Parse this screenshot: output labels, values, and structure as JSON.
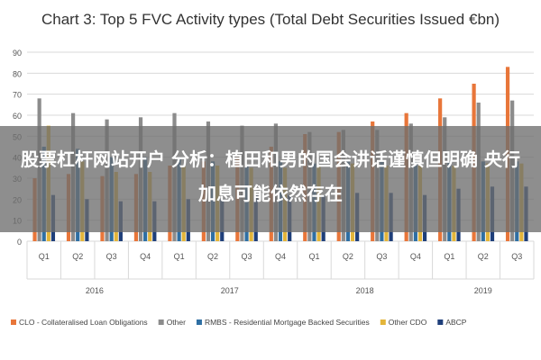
{
  "overlay": {
    "headline": "股票杠杆网站开户 分析：植田和男的国会讲话谨慎但明确 央行加息可能依然存在"
  },
  "colors": {
    "CLO": "#e8763a",
    "Other": "#8c8c8c",
    "RMBS": "#2f6fa3",
    "OtherCDO": "#e3b53a",
    "ABCP": "#1f3f7a",
    "grid": "#d9d9d9",
    "axis_text": "#555555"
  },
  "chart_data": {
    "type": "bar",
    "title": "Chart 3: Top 5 FVC Activity types (Total Debt Securities Issued €bn)",
    "xlabel": "",
    "ylabel": "",
    "ylim": [
      0,
      90
    ],
    "yticks": [
      0,
      10,
      20,
      30,
      40,
      50,
      60,
      70,
      80,
      90
    ],
    "grid": true,
    "legend_position": "bottom",
    "categories": [
      "Q1",
      "Q2",
      "Q3",
      "Q4",
      "Q1",
      "Q2",
      "Q3",
      "Q4",
      "Q1",
      "Q2",
      "Q3",
      "Q4",
      "Q1",
      "Q2",
      "Q3"
    ],
    "groups": [
      {
        "label": "2016",
        "count": 4
      },
      {
        "label": "2017",
        "count": 4
      },
      {
        "label": "2018",
        "count": 4
      },
      {
        "label": "2019",
        "count": 3
      }
    ],
    "series": [
      {
        "name": "CLO - Collateralised Loan Obligations",
        "color_key": "CLO",
        "values": [
          30,
          32,
          31,
          32,
          36,
          38,
          40,
          45,
          51,
          52,
          57,
          61,
          68,
          75,
          83
        ]
      },
      {
        "name": "Other",
        "color_key": "Other",
        "values": [
          68,
          61,
          58,
          59,
          61,
          57,
          55,
          56,
          52,
          53,
          53,
          56,
          59,
          66,
          67
        ]
      },
      {
        "name": "RMBS - Residential Mortgage Backed Securities",
        "color_key": "RMBS",
        "values": [
          45,
          44,
          40,
          40,
          40,
          38,
          36,
          38,
          37,
          38,
          38,
          38,
          38,
          38,
          38
        ]
      },
      {
        "name": "Other CDO",
        "color_key": "OtherCDO",
        "values": [
          55,
          38,
          33,
          33,
          36,
          36,
          35,
          35,
          36,
          37,
          36,
          36,
          36,
          37,
          37
        ]
      },
      {
        "name": "ABCP",
        "color_key": "ABCP",
        "values": [
          22,
          20,
          19,
          19,
          20,
          20,
          22,
          22,
          22,
          23,
          23,
          22,
          25,
          26,
          26
        ]
      }
    ]
  }
}
